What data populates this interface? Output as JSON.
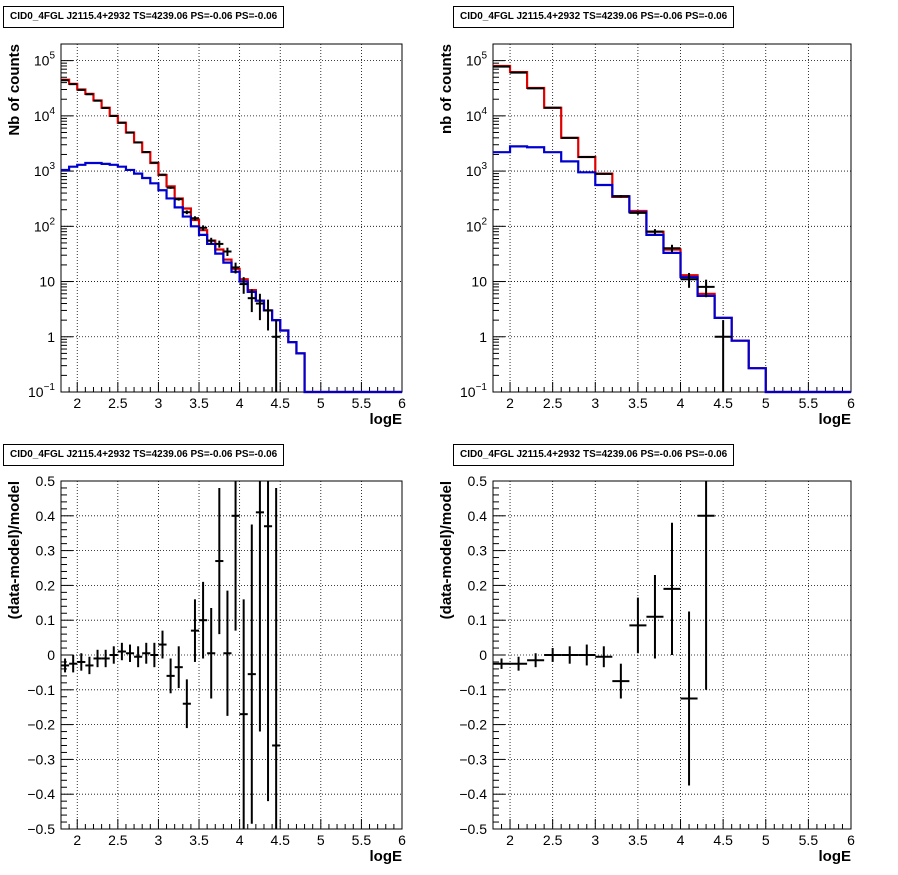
{
  "chart_data": [
    {
      "type": "histogram",
      "title": "CID0_4FGL J2115.4+2932 TS=4239.06 PS=-0.06 PS=-0.06",
      "xlabel": "logE",
      "ylabel": "Nb of counts",
      "xlim": [
        1.8,
        6.0
      ],
      "ylim": [
        0.1,
        200000
      ],
      "yscale": "log",
      "grid": true,
      "x_tick_labels": [
        "2",
        "2.5",
        "3",
        "3.5",
        "4",
        "4.5",
        "5",
        "5.5",
        "6"
      ],
      "y_tick_labels": [
        {
          "value": 0.1,
          "base": "10",
          "exp": "−1"
        },
        {
          "value": 1,
          "base": "1",
          "exp": ""
        },
        {
          "value": 10,
          "base": "10",
          "exp": ""
        },
        {
          "value": 100,
          "base": "10",
          "exp": "2"
        },
        {
          "value": 1000,
          "base": "10",
          "exp": "3"
        },
        {
          "value": 10000,
          "base": "10",
          "exp": "4"
        },
        {
          "value": 100000,
          "base": "10",
          "exp": "5"
        }
      ],
      "bin_edges": [
        1.8,
        1.9,
        2.0,
        2.1,
        2.2,
        2.3,
        2.4,
        2.5,
        2.6,
        2.7,
        2.8,
        2.9,
        3.0,
        3.1,
        3.2,
        3.3,
        3.4,
        3.5,
        3.6,
        3.7,
        3.8,
        3.9,
        4.0,
        4.1,
        4.2,
        4.3,
        4.4,
        4.5,
        4.6,
        4.7,
        4.8,
        4.9,
        5.0,
        5.1,
        5.2,
        5.3,
        5.4,
        5.5,
        5.6,
        5.7,
        5.8,
        5.9,
        6.0
      ],
      "series": [
        {
          "color": "#e00000",
          "values": [
            45000,
            38000,
            30000,
            25000,
            19000,
            14000,
            10000,
            7500,
            5000,
            3300,
            2200,
            1400,
            850,
            530,
            320,
            210,
            130,
            85,
            55,
            38,
            25,
            17,
            11,
            7,
            4.5,
            3,
            2,
            1.3,
            0.8,
            0.5,
            0.1,
            0.1,
            0.1,
            0.1,
            0.1,
            0.1,
            0.1,
            0.1,
            0.1,
            0.1,
            0.1,
            0.1
          ]
        },
        {
          "color": "#0000d0",
          "values": [
            1050,
            1200,
            1300,
            1400,
            1400,
            1350,
            1300,
            1200,
            1050,
            900,
            750,
            600,
            450,
            320,
            220,
            150,
            100,
            70,
            48,
            32,
            22,
            15,
            10,
            6.5,
            4.5,
            3,
            2,
            1.3,
            0.8,
            0.5,
            0.1,
            0.1,
            0.1,
            0.1,
            0.1,
            0.1,
            0.1,
            0.1,
            0.1,
            0.1,
            0.1,
            0.1
          ]
        }
      ],
      "data_points": [
        {
          "x": 1.85,
          "y": 44000,
          "err": 210
        },
        {
          "x": 1.95,
          "y": 37500,
          "err": 190
        },
        {
          "x": 2.05,
          "y": 29500,
          "err": 170
        },
        {
          "x": 2.15,
          "y": 24600,
          "err": 160
        },
        {
          "x": 2.25,
          "y": 18800,
          "err": 140
        },
        {
          "x": 2.35,
          "y": 13900,
          "err": 120
        },
        {
          "x": 2.45,
          "y": 9950,
          "err": 100
        },
        {
          "x": 2.55,
          "y": 7520,
          "err": 87
        },
        {
          "x": 2.65,
          "y": 4980,
          "err": 70
        },
        {
          "x": 2.75,
          "y": 3300,
          "err": 57
        },
        {
          "x": 2.85,
          "y": 2210,
          "err": 47
        },
        {
          "x": 2.95,
          "y": 1420,
          "err": 38
        },
        {
          "x": 3.05,
          "y": 860,
          "err": 30
        },
        {
          "x": 3.15,
          "y": 500,
          "err": 22
        },
        {
          "x": 3.25,
          "y": 310,
          "err": 18
        },
        {
          "x": 3.35,
          "y": 180,
          "err": 14
        },
        {
          "x": 3.45,
          "y": 140,
          "err": 12
        },
        {
          "x": 3.55,
          "y": 94,
          "err": 10
        },
        {
          "x": 3.65,
          "y": 55,
          "err": 7
        },
        {
          "x": 3.75,
          "y": 48,
          "err": 7
        },
        {
          "x": 3.85,
          "y": 35,
          "err": 6
        },
        {
          "x": 3.95,
          "y": 18,
          "err": 4
        },
        {
          "x": 4.05,
          "y": 9,
          "err": 3
        },
        {
          "x": 4.15,
          "y": 5,
          "err": 2.2
        },
        {
          "x": 4.25,
          "y": 4,
          "err": 2
        },
        {
          "x": 4.35,
          "y": 3,
          "err": 1.7
        },
        {
          "x": 4.45,
          "y": 1,
          "err": 1
        }
      ]
    },
    {
      "type": "histogram",
      "title": "CID0_4FGL J2115.4+2932 TS=4239.06 PS=-0.06 PS=-0.06",
      "xlabel": "logE",
      "ylabel": "nb of counts",
      "xlim": [
        1.8,
        6.0
      ],
      "ylim": [
        0.1,
        200000
      ],
      "yscale": "log",
      "grid": true,
      "x_tick_labels": [
        "2",
        "2.5",
        "3",
        "3.5",
        "4",
        "4.5",
        "5",
        "5.5",
        "6"
      ],
      "y_tick_labels": [
        {
          "value": 0.1,
          "base": "10",
          "exp": "−1"
        },
        {
          "value": 1,
          "base": "1",
          "exp": ""
        },
        {
          "value": 10,
          "base": "10",
          "exp": ""
        },
        {
          "value": 100,
          "base": "10",
          "exp": "2"
        },
        {
          "value": 1000,
          "base": "10",
          "exp": "3"
        },
        {
          "value": 10000,
          "base": "10",
          "exp": "4"
        },
        {
          "value": 100000,
          "base": "10",
          "exp": "5"
        }
      ],
      "bin_edges": [
        1.8,
        2.0,
        2.2,
        2.4,
        2.6,
        2.8,
        3.0,
        3.2,
        3.4,
        3.6,
        3.8,
        4.0,
        4.2,
        4.4,
        4.6,
        4.8,
        5.0,
        5.2,
        5.4,
        5.6,
        5.8,
        6.0
      ],
      "series": [
        {
          "color": "#e00000",
          "values": [
            80000,
            62000,
            32000,
            14000,
            4000,
            1800,
            900,
            340,
            190,
            80,
            38,
            13,
            6,
            2.2,
            0.85,
            0.27,
            0.1,
            0.1,
            0.1,
            0.1,
            0.1
          ]
        },
        {
          "color": "#0000d0",
          "values": [
            2200,
            2800,
            2700,
            2200,
            1500,
            950,
            560,
            350,
            180,
            70,
            33,
            12,
            5.5,
            2.2,
            0.85,
            0.27,
            0.1,
            0.1,
            0.1,
            0.1,
            0.1
          ]
        }
      ],
      "data_points": [
        {
          "x": 1.9,
          "y": 78000,
          "err": 280
        },
        {
          "x": 2.1,
          "y": 60500,
          "err": 250
        },
        {
          "x": 2.3,
          "y": 31500,
          "err": 180
        },
        {
          "x": 2.5,
          "y": 14000,
          "err": 120
        },
        {
          "x": 2.7,
          "y": 4000,
          "err": 63
        },
        {
          "x": 2.9,
          "y": 1800,
          "err": 42
        },
        {
          "x": 3.1,
          "y": 890,
          "err": 30
        },
        {
          "x": 3.3,
          "y": 350,
          "err": 19
        },
        {
          "x": 3.5,
          "y": 175,
          "err": 13
        },
        {
          "x": 3.7,
          "y": 80,
          "err": 9
        },
        {
          "x": 3.9,
          "y": 40,
          "err": 6.3
        },
        {
          "x": 4.1,
          "y": 11,
          "err": 3.3
        },
        {
          "x": 4.3,
          "y": 8,
          "err": 2.8
        },
        {
          "x": 4.5,
          "y": 1,
          "err": 1
        }
      ]
    },
    {
      "type": "scatter",
      "title": "CID0_4FGL J2115.4+2932 TS=4239.06 PS=-0.06 PS=-0.06",
      "xlabel": "logE",
      "ylabel": "(data-model)/model",
      "xlim": [
        1.8,
        6.0
      ],
      "ylim": [
        -0.5,
        0.5
      ],
      "grid": true,
      "x_tick_labels": [
        "2",
        "2.5",
        "3",
        "3.5",
        "4",
        "4.5",
        "5",
        "5.5",
        "6"
      ],
      "y_tick_labels": [
        "−0.5",
        "−0.4",
        "−0.3",
        "−0.2",
        "−0.1",
        "0",
        "0.1",
        "0.2",
        "0.3",
        "0.4",
        "0.5"
      ],
      "points": [
        {
          "x": 1.85,
          "y": -0.03,
          "err": 0.02
        },
        {
          "x": 1.95,
          "y": -0.025,
          "err": 0.025
        },
        {
          "x": 2.05,
          "y": -0.02,
          "err": 0.025
        },
        {
          "x": 2.15,
          "y": -0.03,
          "err": 0.025
        },
        {
          "x": 2.25,
          "y": -0.01,
          "err": 0.025
        },
        {
          "x": 2.35,
          "y": -0.01,
          "err": 0.025
        },
        {
          "x": 2.45,
          "y": 0.0,
          "err": 0.025
        },
        {
          "x": 2.55,
          "y": 0.01,
          "err": 0.025
        },
        {
          "x": 2.65,
          "y": 0.005,
          "err": 0.025
        },
        {
          "x": 2.75,
          "y": -0.005,
          "err": 0.03
        },
        {
          "x": 2.85,
          "y": 0.005,
          "err": 0.03
        },
        {
          "x": 2.95,
          "y": 0.0,
          "err": 0.035
        },
        {
          "x": 3.05,
          "y": 0.03,
          "err": 0.04
        },
        {
          "x": 3.15,
          "y": -0.06,
          "err": 0.05
        },
        {
          "x": 3.25,
          "y": -0.035,
          "err": 0.06
        },
        {
          "x": 3.35,
          "y": -0.14,
          "err": 0.07
        },
        {
          "x": 3.45,
          "y": 0.07,
          "err": 0.09
        },
        {
          "x": 3.55,
          "y": 0.1,
          "err": 0.11
        },
        {
          "x": 3.65,
          "y": 0.005,
          "err": 0.13
        },
        {
          "x": 3.75,
          "y": 0.27,
          "err": 0.21
        },
        {
          "x": 3.85,
          "y": 0.005,
          "err": 0.18
        },
        {
          "x": 3.95,
          "y": 0.4,
          "err": 0.33
        },
        {
          "x": 4.05,
          "y": -0.17,
          "err": 0.33
        },
        {
          "x": 4.15,
          "y": -0.055,
          "err": 0.43
        },
        {
          "x": 4.25,
          "y": 0.41,
          "err": 0.63
        },
        {
          "x": 4.35,
          "y": 0.37,
          "err": 0.79
        },
        {
          "x": 4.45,
          "y": -0.26,
          "err": 0.74
        }
      ]
    },
    {
      "type": "scatter",
      "title": "CID0_4FGL J2115.4+2932 TS=4239.06 PS=-0.06 PS=-0.06",
      "xlabel": "logE",
      "ylabel": "(data-model)/model",
      "xlim": [
        1.8,
        6.0
      ],
      "ylim": [
        -0.5,
        0.5
      ],
      "grid": true,
      "x_tick_labels": [
        "2",
        "2.5",
        "3",
        "3.5",
        "4",
        "4.5",
        "5",
        "5.5",
        "6"
      ],
      "y_tick_labels": [
        "−0.5",
        "−0.4",
        "−0.3",
        "−0.2",
        "−0.1",
        "0",
        "0.1",
        "0.2",
        "0.3",
        "0.4",
        "0.5"
      ],
      "points": [
        {
          "x": 1.9,
          "y": -0.025,
          "err": 0.015
        },
        {
          "x": 2.1,
          "y": -0.025,
          "err": 0.02
        },
        {
          "x": 2.3,
          "y": -0.015,
          "err": 0.02
        },
        {
          "x": 2.5,
          "y": 0.0,
          "err": 0.02
        },
        {
          "x": 2.7,
          "y": 0.0,
          "err": 0.025
        },
        {
          "x": 2.9,
          "y": 0.0,
          "err": 0.03
        },
        {
          "x": 3.1,
          "y": -0.005,
          "err": 0.03
        },
        {
          "x": 3.3,
          "y": -0.075,
          "err": 0.05
        },
        {
          "x": 3.5,
          "y": 0.085,
          "err": 0.08
        },
        {
          "x": 3.7,
          "y": 0.11,
          "err": 0.12
        },
        {
          "x": 3.9,
          "y": 0.19,
          "err": 0.19
        },
        {
          "x": 4.1,
          "y": -0.125,
          "err": 0.25
        },
        {
          "x": 4.3,
          "y": 0.4,
          "err": 0.5
        }
      ]
    }
  ]
}
